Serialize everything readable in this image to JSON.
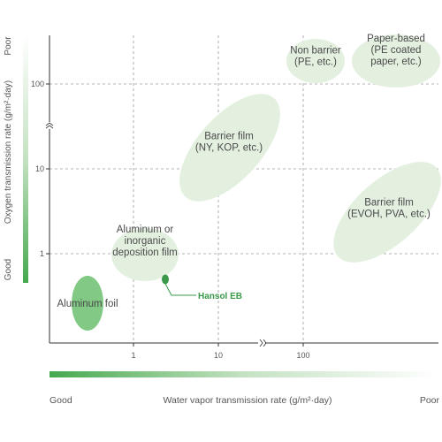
{
  "chart_data": {
    "type": "scatter",
    "xscale": "log",
    "yscale": "log",
    "x_tick_labels": [
      "1",
      "10",
      "100"
    ],
    "y_tick_labels": [
      "1",
      "10",
      "100"
    ],
    "xlabel": "Water vapor transmission rate (g/m²·day)",
    "ylabel": "Oxygen transmission rate (g/m²·day)",
    "x_good": "Good",
    "x_poor": "Poor",
    "y_good": "Good",
    "y_poor": "Poor",
    "grid": true,
    "regions": [
      {
        "id": "aluminum-foil",
        "lines": [
          "Aluminum foil"
        ],
        "cx": 0.3,
        "cy": 0.18
      },
      {
        "id": "aluminum-deposition",
        "lines": [
          "Aluminum or",
          "inorganic",
          "deposition film"
        ],
        "cx": 1.5,
        "cy": 1.0
      },
      {
        "id": "barrier-film-ny",
        "lines": [
          "Barrier film",
          "(NY, KOP, etc.)"
        ],
        "cx": 10,
        "cy": 13
      },
      {
        "id": "non-barrier",
        "lines": [
          "Non barrier",
          "(PE, etc.)"
        ],
        "cx": 150,
        "cy": 250
      },
      {
        "id": "paper-based",
        "lines": [
          "Paper-based",
          "(PE coated",
          "paper, etc.)"
        ],
        "cx": 800,
        "cy": 250
      },
      {
        "id": "barrier-film-evoh",
        "lines": [
          "Barrier film",
          "(EVOH, PVA, etc.)"
        ],
        "cx": 700,
        "cy": 2.5
      }
    ],
    "highlight": {
      "label": "Hansol EB",
      "x": 2.4,
      "y": 0.5
    }
  },
  "colors": {
    "region_fill": "#e3f0e0",
    "foil_fill": "#6bbf6e",
    "highlight": "#3a9a4a",
    "gradient_start": "#45a94e",
    "gradient_end": "#ffffff",
    "grid": "#9a9a9a"
  }
}
